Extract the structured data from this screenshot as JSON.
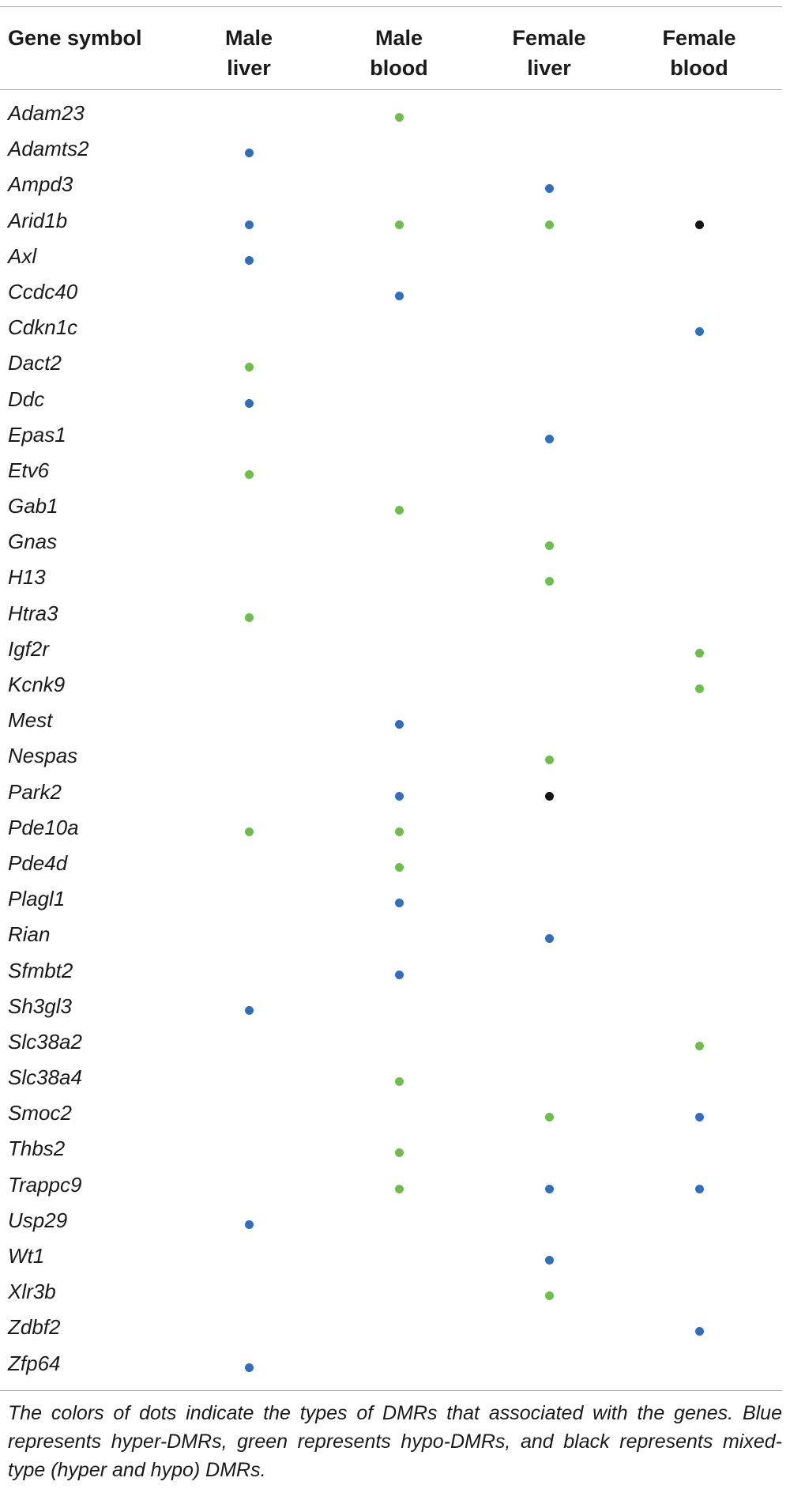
{
  "table": {
    "headers": {
      "gene_symbol": "Gene symbol",
      "male_liver": [
        "Male",
        "liver"
      ],
      "male_blood": [
        "Male",
        "blood"
      ],
      "female_liver": [
        "Female",
        "liver"
      ],
      "female_blood": [
        "Female",
        "blood"
      ]
    },
    "dot_colors": {
      "hyper": "#2f6fbf",
      "hypo": "#6cc04a",
      "mixed": "#111111"
    },
    "rows": [
      {
        "gene": "Adam23",
        "male_liver": "",
        "male_blood": "hypo",
        "female_liver": "",
        "female_blood": ""
      },
      {
        "gene": "Adamts2",
        "male_liver": "hyper",
        "male_blood": "",
        "female_liver": "",
        "female_blood": ""
      },
      {
        "gene": "Ampd3",
        "male_liver": "",
        "male_blood": "",
        "female_liver": "hyper",
        "female_blood": ""
      },
      {
        "gene": "Arid1b",
        "male_liver": "hyper",
        "male_blood": "hypo",
        "female_liver": "hypo",
        "female_blood": "mixed"
      },
      {
        "gene": "Axl",
        "male_liver": "hyper",
        "male_blood": "",
        "female_liver": "",
        "female_blood": ""
      },
      {
        "gene": "Ccdc40",
        "male_liver": "",
        "male_blood": "hyper",
        "female_liver": "",
        "female_blood": ""
      },
      {
        "gene": "Cdkn1c",
        "male_liver": "",
        "male_blood": "",
        "female_liver": "",
        "female_blood": "hyper"
      },
      {
        "gene": "Dact2",
        "male_liver": "hypo",
        "male_blood": "",
        "female_liver": "",
        "female_blood": ""
      },
      {
        "gene": "Ddc",
        "male_liver": "hyper",
        "male_blood": "",
        "female_liver": "",
        "female_blood": ""
      },
      {
        "gene": "Epas1",
        "male_liver": "",
        "male_blood": "",
        "female_liver": "hyper",
        "female_blood": ""
      },
      {
        "gene": "Etv6",
        "male_liver": "hypo",
        "male_blood": "",
        "female_liver": "",
        "female_blood": ""
      },
      {
        "gene": "Gab1",
        "male_liver": "",
        "male_blood": "hypo",
        "female_liver": "",
        "female_blood": ""
      },
      {
        "gene": "Gnas",
        "male_liver": "",
        "male_blood": "",
        "female_liver": "hypo",
        "female_blood": ""
      },
      {
        "gene": "H13",
        "male_liver": "",
        "male_blood": "",
        "female_liver": "hypo",
        "female_blood": ""
      },
      {
        "gene": "Htra3",
        "male_liver": "hypo",
        "male_blood": "",
        "female_liver": "",
        "female_blood": ""
      },
      {
        "gene": "Igf2r",
        "male_liver": "",
        "male_blood": "",
        "female_liver": "",
        "female_blood": "hypo"
      },
      {
        "gene": "Kcnk9",
        "male_liver": "",
        "male_blood": "",
        "female_liver": "",
        "female_blood": "hypo"
      },
      {
        "gene": "Mest",
        "male_liver": "",
        "male_blood": "hyper",
        "female_liver": "",
        "female_blood": ""
      },
      {
        "gene": "Nespas",
        "male_liver": "",
        "male_blood": "",
        "female_liver": "hypo",
        "female_blood": ""
      },
      {
        "gene": "Park2",
        "male_liver": "",
        "male_blood": "hyper",
        "female_liver": "mixed",
        "female_blood": ""
      },
      {
        "gene": "Pde10a",
        "male_liver": "hypo",
        "male_blood": "hypo",
        "female_liver": "",
        "female_blood": ""
      },
      {
        "gene": "Pde4d",
        "male_liver": "",
        "male_blood": "hypo",
        "female_liver": "",
        "female_blood": ""
      },
      {
        "gene": "Plagl1",
        "male_liver": "",
        "male_blood": "hyper",
        "female_liver": "",
        "female_blood": ""
      },
      {
        "gene": "Rian",
        "male_liver": "",
        "male_blood": "",
        "female_liver": "hyper",
        "female_blood": ""
      },
      {
        "gene": "Sfmbt2",
        "male_liver": "",
        "male_blood": "hyper",
        "female_liver": "",
        "female_blood": ""
      },
      {
        "gene": "Sh3gl3",
        "male_liver": "hyper",
        "male_blood": "",
        "female_liver": "",
        "female_blood": ""
      },
      {
        "gene": "Slc38a2",
        "male_liver": "",
        "male_blood": "",
        "female_liver": "",
        "female_blood": "hypo"
      },
      {
        "gene": "Slc38a4",
        "male_liver": "",
        "male_blood": "hypo",
        "female_liver": "",
        "female_blood": ""
      },
      {
        "gene": "Smoc2",
        "male_liver": "",
        "male_blood": "",
        "female_liver": "hypo",
        "female_blood": "hyper"
      },
      {
        "gene": "Thbs2",
        "male_liver": "",
        "male_blood": "hypo",
        "female_liver": "",
        "female_blood": ""
      },
      {
        "gene": "Trappc9",
        "male_liver": "",
        "male_blood": "hypo",
        "female_liver": "hyper",
        "female_blood": "hyper"
      },
      {
        "gene": "Usp29",
        "male_liver": "hyper",
        "male_blood": "",
        "female_liver": "",
        "female_blood": ""
      },
      {
        "gene": "Wt1",
        "male_liver": "",
        "male_blood": "",
        "female_liver": "hyper",
        "female_blood": ""
      },
      {
        "gene": "Xlr3b",
        "male_liver": "",
        "male_blood": "",
        "female_liver": "hypo",
        "female_blood": ""
      },
      {
        "gene": "Zdbf2",
        "male_liver": "",
        "male_blood": "",
        "female_liver": "",
        "female_blood": "hyper"
      },
      {
        "gene": "Zfp64",
        "male_liver": "hyper",
        "male_blood": "",
        "female_liver": "",
        "female_blood": ""
      }
    ]
  },
  "footnote": "The colors of dots indicate the types of DMRs that associated with the genes. Blue represents hyper-DMRs, green represents hypo-DMRs, and black represents mixed-type (hyper and hypo) DMRs."
}
